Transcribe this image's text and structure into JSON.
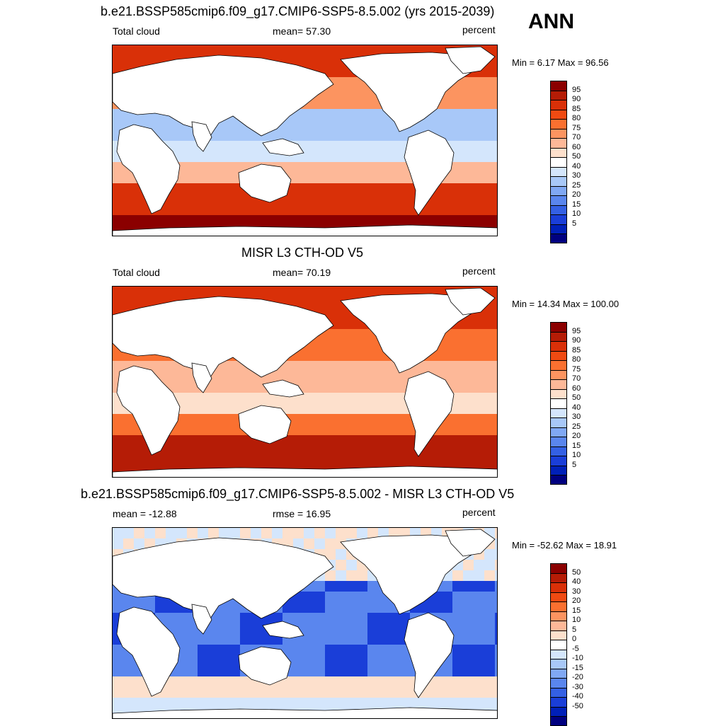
{
  "header": {
    "season": "ANN"
  },
  "panels": [
    {
      "title": "b.e21.BSSP585cmip6.f09_g17.CMIP6-SSP5-8.5.002 (yrs 2015-2039)",
      "left_label": "Total cloud",
      "center_label": "mean=  57.30",
      "right_label": "percent",
      "minmax": "Min =   6.17 Max =  96.56",
      "colorbar_labels": [
        "95",
        "90",
        "85",
        "80",
        "75",
        "70",
        "60",
        "50",
        "40",
        "30",
        "25",
        "20",
        "15",
        "10",
        "5"
      ],
      "colorbar_colors": [
        "#8b0000",
        "#b51c06",
        "#d93008",
        "#f04a12",
        "#fa7030",
        "#fc9460",
        "#fdb898",
        "#fde0cc",
        "#ffffff",
        "#d4e6fc",
        "#a8c8f8",
        "#80a8f4",
        "#5a86ee",
        "#3460e4",
        "#1a3ed8",
        "#0020b8",
        "#000080"
      ],
      "map_kind": "model"
    },
    {
      "title": "MISR L3 CTH-OD V5",
      "left_label": "Total cloud",
      "center_label": "mean=  70.19",
      "right_label": "percent",
      "minmax": "Min =  14.34 Max = 100.00",
      "colorbar_labels": [
        "95",
        "90",
        "85",
        "80",
        "75",
        "70",
        "60",
        "50",
        "40",
        "30",
        "25",
        "20",
        "15",
        "10",
        "5"
      ],
      "colorbar_colors": [
        "#8b0000",
        "#b51c06",
        "#d93008",
        "#f04a12",
        "#fa7030",
        "#fc9460",
        "#fdb898",
        "#fde0cc",
        "#ffffff",
        "#d4e6fc",
        "#a8c8f8",
        "#80a8f4",
        "#5a86ee",
        "#3460e4",
        "#1a3ed8",
        "#0020b8",
        "#000080"
      ],
      "map_kind": "obs"
    },
    {
      "title": "b.e21.BSSP585cmip6.f09_g17.CMIP6-SSP5-8.5.002 - MISR L3 CTH-OD V5",
      "left_label": "mean = -12.88",
      "center_label": "rmse =  16.95",
      "right_label": "percent",
      "minmax": "Min = -52.62 Max =  18.91",
      "colorbar_labels": [
        "50",
        "40",
        "30",
        "20",
        "15",
        "10",
        "5",
        "0",
        "-5",
        "-10",
        "-15",
        "-20",
        "-30",
        "-40",
        "-50"
      ],
      "colorbar_colors": [
        "#8b0000",
        "#b51c06",
        "#d93008",
        "#f04a12",
        "#fa7030",
        "#fc9460",
        "#fdb898",
        "#fde0cc",
        "#ffffff",
        "#d4e6fc",
        "#a8c8f8",
        "#80a8f4",
        "#5a86ee",
        "#3460e4",
        "#1a3ed8",
        "#0020b8",
        "#000080"
      ],
      "map_kind": "diff"
    }
  ]
}
